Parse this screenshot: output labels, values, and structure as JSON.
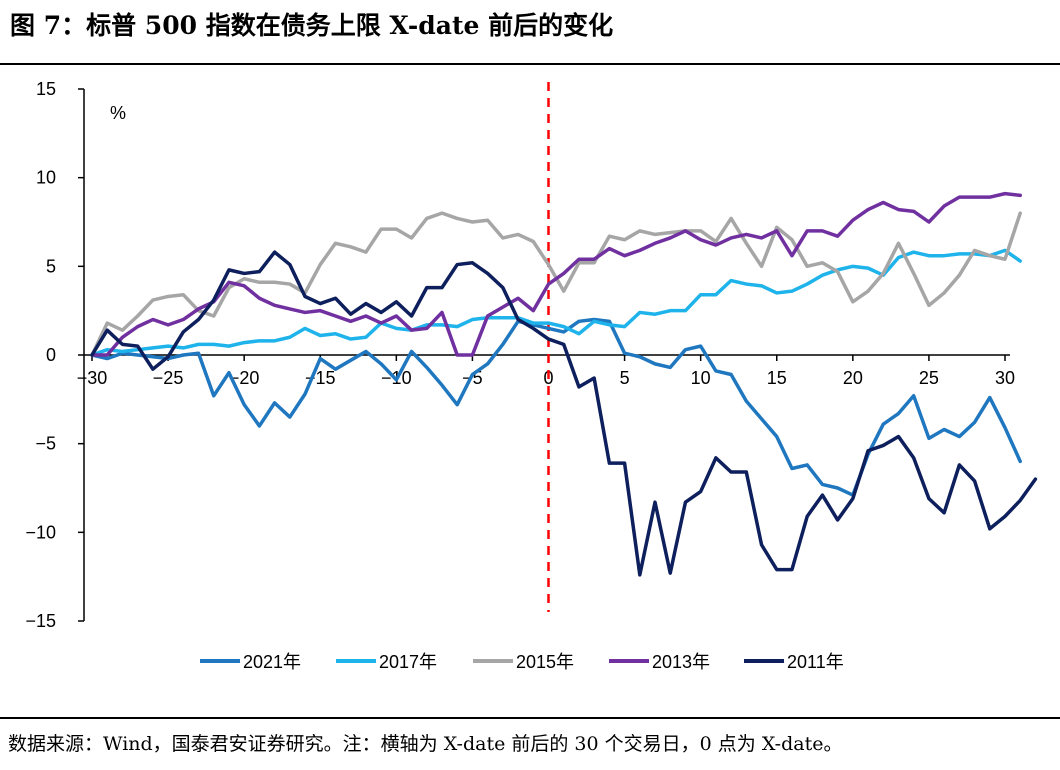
{
  "figure": {
    "title": "图 7：标普 500 指数在债务上限 X-date 前后的变化",
    "source": "数据来源：Wind，国泰君安证券研究。注：横轴为 X-date 前后的 30 个交易日，0 点为 X-date。"
  },
  "chart_data": {
    "type": "line",
    "title": "标普 500 指数在债务上限 X-date 前后的变化",
    "ylabel": "%",
    "xlabel": "",
    "xlim": [
      -30,
      30
    ],
    "ylim": [
      -15,
      15
    ],
    "xticks": [
      -30,
      -25,
      -20,
      -15,
      -10,
      -5,
      0,
      5,
      10,
      15,
      20,
      25,
      30
    ],
    "xtick_labels": [
      "−30",
      "−25",
      "−20",
      "−15",
      "−10",
      "−5",
      "0",
      "5",
      "10",
      "15",
      "20",
      "25",
      "30"
    ],
    "yticks": [
      15,
      10,
      5,
      0,
      -5,
      -10,
      -15
    ],
    "ytick_labels": [
      "15",
      "10",
      "5",
      "0",
      "−5",
      "−10",
      "−15"
    ],
    "reference_line": {
      "x": 0,
      "style": "dashed",
      "color": "#FF0000"
    },
    "legend_position": "bottom",
    "series": [
      {
        "name": "2021年",
        "color": "#1F77C0",
        "values": [
          0,
          -0.2,
          0.1,
          0,
          -0.1,
          -0.2,
          0,
          0.1,
          -2.3,
          -1,
          -2.8,
          -4,
          -2.7,
          -3.5,
          -2.2,
          -0.2,
          -0.8,
          -0.3,
          0.2,
          -0.5,
          -1.4,
          0.2,
          -0.7,
          -1.7,
          -2.8,
          -1.1,
          -0.5,
          0.6,
          1.9,
          1.7,
          1.5,
          1.3,
          1.9,
          2,
          1.9,
          0.1,
          -0.1,
          -0.5,
          -0.7,
          0.3,
          0.5,
          -0.9,
          -1.1,
          -2.6,
          -3.6,
          -4.6,
          -6.4,
          -6.2,
          -7.3,
          -7.5,
          -7.9,
          -5.6,
          -3.9,
          -3.3,
          -2.3,
          -4.7,
          -4.2,
          -4.6,
          -3.8,
          -2.4,
          -4.1,
          -6
        ]
      },
      {
        "name": "2017年",
        "color": "#1EB3EA",
        "values": [
          0,
          0.3,
          0.2,
          0.3,
          0.4,
          0.5,
          0.4,
          0.6,
          0.6,
          0.5,
          0.7,
          0.8,
          0.8,
          1,
          1.5,
          1.1,
          1.2,
          0.9,
          1,
          1.8,
          1.5,
          1.4,
          1.7,
          1.7,
          1.6,
          2,
          2.1,
          2.1,
          2.1,
          1.8,
          1.8,
          1.6,
          1.2,
          1.9,
          1.7,
          1.6,
          2.4,
          2.3,
          2.5,
          2.5,
          3.4,
          3.4,
          4.2,
          4,
          3.9,
          3.5,
          3.6,
          4,
          4.5,
          4.8,
          5,
          4.9,
          4.5,
          5.5,
          5.8,
          5.6,
          5.6,
          5.7,
          5.7,
          5.6,
          5.9,
          5.3
        ]
      },
      {
        "name": "2015年",
        "color": "#A6A6A6",
        "values": [
          0,
          1.8,
          1.4,
          2.2,
          3.1,
          3.3,
          3.4,
          2.5,
          2.2,
          3.8,
          4.3,
          4.1,
          4.1,
          4,
          3.5,
          5.1,
          6.3,
          6.1,
          5.8,
          7.1,
          7.1,
          6.6,
          7.7,
          8,
          7.7,
          7.5,
          7.6,
          6.6,
          6.8,
          6.4,
          5.1,
          3.6,
          5.2,
          5.2,
          6.7,
          6.5,
          7,
          6.8,
          6.9,
          7,
          7,
          6.4,
          7.7,
          6.3,
          5,
          7.2,
          6.5,
          5,
          5.2,
          4.7,
          3,
          3.6,
          4.6,
          6.3,
          4.6,
          2.8,
          3.5,
          4.5,
          5.9,
          5.6,
          5.4,
          8
        ]
      },
      {
        "name": "2013年",
        "color": "#7030A0",
        "values": [
          0,
          0,
          1,
          1.6,
          2,
          1.7,
          2,
          2.6,
          3,
          4.1,
          3.9,
          3.2,
          2.8,
          2.6,
          2.4,
          2.5,
          2.2,
          1.9,
          2.2,
          1.8,
          2.2,
          1.4,
          1.5,
          2.4,
          0,
          0,
          2.2,
          2.7,
          3.2,
          2.5,
          4,
          4.6,
          5.4,
          5.4,
          6,
          5.6,
          5.9,
          6.3,
          6.6,
          7,
          6.5,
          6.2,
          6.6,
          6.8,
          6.6,
          7,
          5.6,
          7,
          7,
          6.7,
          7.6,
          8.2,
          8.6,
          8.2,
          8.1,
          7.5,
          8.4,
          8.9,
          8.9,
          8.9,
          9.1,
          9
        ]
      },
      {
        "name": "2011年",
        "color": "#0D1F5C",
        "values": [
          0,
          1.4,
          0.6,
          0.5,
          -0.8,
          -0.1,
          1.3,
          2,
          3.1,
          4.8,
          4.6,
          4.7,
          5.8,
          5.1,
          3.3,
          2.9,
          3.2,
          2.3,
          2.9,
          2.4,
          3,
          2.2,
          3.8,
          3.8,
          5.1,
          5.2,
          4.6,
          3.8,
          2,
          1.5,
          0.9,
          0.6,
          -1.8,
          -1.3,
          -6.1,
          -6.1,
          -12.4,
          -8.3,
          -12.3,
          -8.3,
          -7.7,
          -5.8,
          -6.6,
          -6.6,
          -10.7,
          -12.1,
          -12.1,
          -9.1,
          -7.9,
          -9.3,
          -8.1,
          -5.4,
          -5.1,
          -4.6,
          -5.8,
          -8.1,
          -8.9,
          -6.2,
          -7.1,
          -9.8,
          -9.1,
          -8.2,
          -7
        ]
      }
    ]
  }
}
